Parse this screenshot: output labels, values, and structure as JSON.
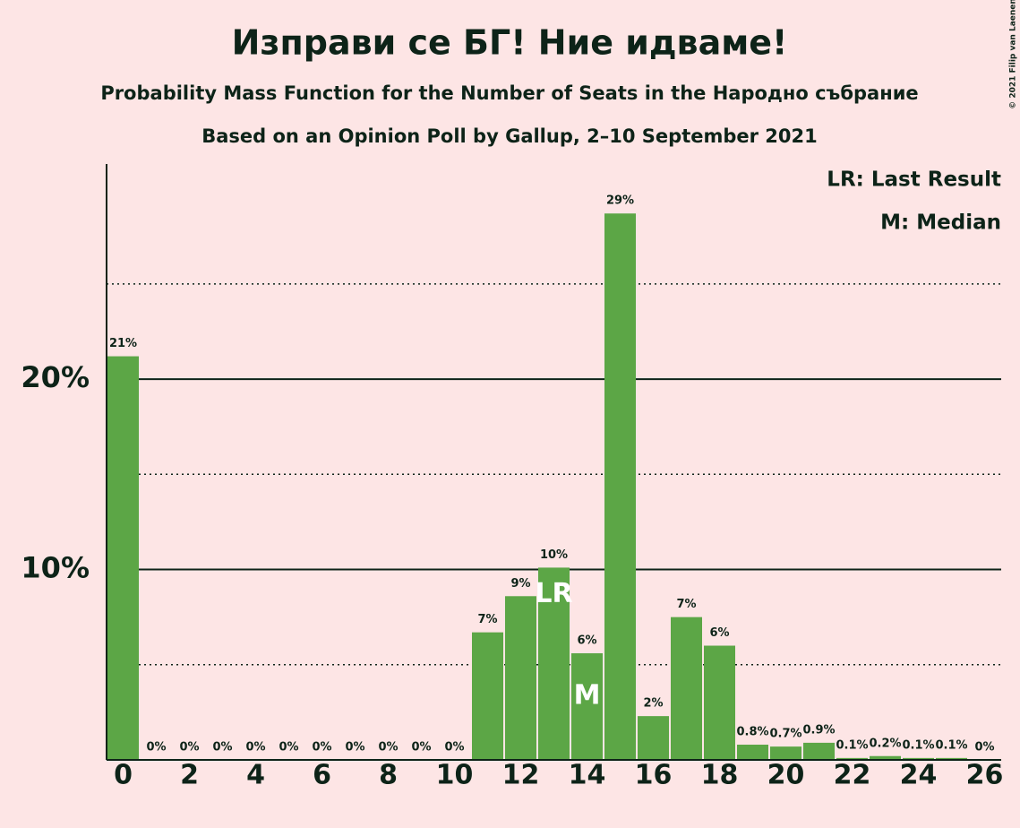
{
  "chart_data": {
    "type": "bar",
    "title": "Изправи се БГ! Ние идваме!",
    "subtitle": "Probability Mass Function for the Number of Seats in the Народно събрание",
    "subtitle2": "Based on an Opinion Poll by Gallup, 2–10 September 2021",
    "copyright": "© 2021 Filip van Laenen",
    "legend": [
      "LR: Last Result",
      "M: Median"
    ],
    "x": [
      0,
      1,
      2,
      3,
      4,
      5,
      6,
      7,
      8,
      9,
      10,
      11,
      12,
      13,
      14,
      15,
      16,
      17,
      18,
      19,
      20,
      21,
      22,
      23,
      24,
      25,
      26
    ],
    "values": [
      21.2,
      0,
      0,
      0,
      0,
      0,
      0,
      0,
      0,
      0,
      0,
      6.7,
      8.6,
      10.1,
      5.6,
      28.7,
      2.3,
      7.5,
      6.0,
      0.8,
      0.7,
      0.9,
      0.1,
      0.2,
      0.1,
      0.1,
      0
    ],
    "value_labels": [
      "21%",
      "0%",
      "0%",
      "0%",
      "0%",
      "0%",
      "0%",
      "0%",
      "0%",
      "0%",
      "0%",
      "7%",
      "9%",
      "10%",
      "6%",
      "29%",
      "2%",
      "7%",
      "6%",
      "0.8%",
      "0.7%",
      "0.9%",
      "0.1%",
      "0.2%",
      "0.1%",
      "0.1%",
      "0%"
    ],
    "color": "#5ca646",
    "annotations": [
      {
        "label": "LR",
        "x": 13
      },
      {
        "label": "M",
        "x": 14
      }
    ],
    "xlim": [
      -0.5,
      26.5
    ],
    "xticks": [
      0,
      2,
      4,
      6,
      8,
      10,
      12,
      14,
      16,
      18,
      20,
      22,
      24,
      26
    ],
    "ylim": [
      0,
      31.3
    ],
    "yticks": [
      {
        "value": 10,
        "label": "10%"
      },
      {
        "value": 20,
        "label": "20%"
      }
    ],
    "minor_yticks": [
      5,
      15,
      25
    ],
    "grid": true
  }
}
